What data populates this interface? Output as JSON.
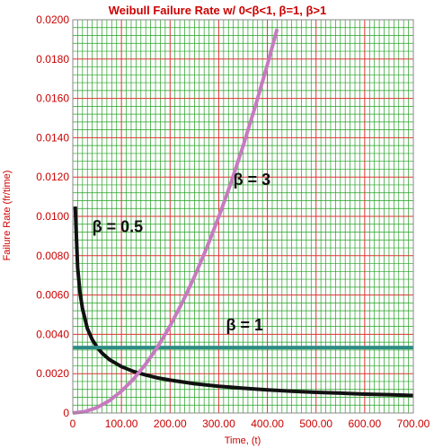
{
  "chart_data": {
    "type": "line",
    "title": "Weibull Failure Rate w/ 0<β<1, β=1, β>1",
    "xlabel": "Time, (t)",
    "ylabel": "Failure Rate (fr/time)",
    "xlim": [
      0,
      700
    ],
    "ylim": [
      0,
      0.02
    ],
    "x_ticks": [
      "0",
      "100.00",
      "200.00",
      "300.00",
      "400.00",
      "500.00",
      "600.00",
      "700.00"
    ],
    "y_ticks": [
      "0",
      "0.0020",
      "0.0040",
      "0.0060",
      "0.0080",
      "0.0100",
      "0.0120",
      "0.0140",
      "0.0160",
      "0.0180",
      "0.0200"
    ],
    "grid": true,
    "annotations": [
      {
        "text": "β = 3",
        "x": 330,
        "y": 0.0116
      },
      {
        "text": "β = 0.5",
        "x": 40,
        "y": 0.0092
      },
      {
        "text": "β = 1",
        "x": 315,
        "y": 0.0042
      }
    ],
    "series": [
      {
        "name": "β = 0.5",
        "color": "#111111",
        "x": [
          5,
          10,
          15,
          20,
          30,
          40,
          50,
          60,
          75,
          100,
          125,
          150,
          175,
          200,
          250,
          300,
          350,
          400,
          450,
          500,
          550,
          600,
          650,
          700
        ],
        "y": [
          0.0105,
          0.0074,
          0.0061,
          0.0053,
          0.0043,
          0.00373,
          0.00334,
          0.00305,
          0.00272,
          0.00236,
          0.00211,
          0.00193,
          0.00178,
          0.00167,
          0.00149,
          0.00136,
          0.00126,
          0.00118,
          0.00111,
          0.00105,
          0.00101,
          0.00096,
          0.00093,
          0.00089
        ]
      },
      {
        "name": "β = 1",
        "color": "#2e8b86",
        "x": [
          0,
          700
        ],
        "y": [
          0.00333,
          0.00333
        ]
      },
      {
        "name": "β = 3",
        "color": "#c77ac0",
        "x": [
          0,
          25,
          50,
          75,
          100,
          125,
          150,
          175,
          200,
          225,
          250,
          275,
          300,
          325,
          350,
          375,
          400,
          420
        ],
        "y": [
          0,
          7e-05,
          0.00028,
          0.00062,
          0.00111,
          0.00173,
          0.00249,
          0.00339,
          0.00443,
          0.00561,
          0.00693,
          0.00838,
          0.00997,
          0.0117,
          0.01357,
          0.01558,
          0.01772,
          0.01953
        ]
      }
    ]
  }
}
